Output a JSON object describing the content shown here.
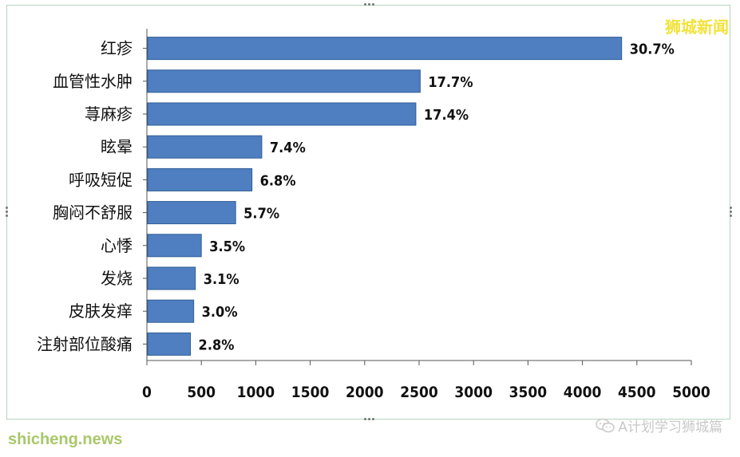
{
  "branding": {
    "top_watermark": "狮城新闻",
    "bottom_watermark": "A计划学习狮城篇",
    "site": "shicheng.news"
  },
  "chart_data": {
    "type": "bar",
    "orientation": "horizontal",
    "title": "",
    "xlabel": "",
    "ylabel": "",
    "xlim": [
      0,
      5000
    ],
    "xticks": [
      0,
      500,
      1000,
      1500,
      2000,
      2500,
      3000,
      3500,
      4000,
      4500,
      5000
    ],
    "grid": false,
    "categories": [
      "红疹",
      "血管性水肿",
      "荨麻疹",
      "眩晕",
      "呼吸短促",
      "胸闷不舒服",
      "心悸",
      "发烧",
      "皮肤发痒",
      "注射部位酸痛"
    ],
    "values": [
      4360,
      2510,
      2470,
      1055,
      965,
      815,
      500,
      445,
      430,
      400
    ],
    "labels": [
      "30.7%",
      "17.7%",
      "17.4%",
      "7.4%",
      "6.8%",
      "5.7%",
      "3.5%",
      "3.1%",
      "3.0%",
      "2.8%"
    ],
    "bar_color": "#4f7fc0",
    "bar_edge_color": "#2f5d95"
  }
}
